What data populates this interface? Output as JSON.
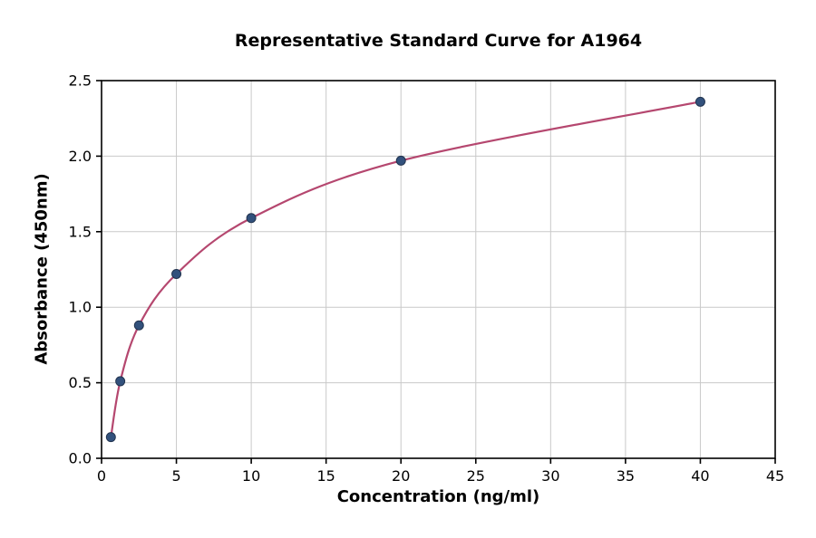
{
  "chart_data": {
    "type": "scatter",
    "title": "Representative Standard Curve for A1964",
    "xlabel": "Concentration (ng/ml)",
    "ylabel": "Absorbance (450nm)",
    "x": [
      0.625,
      1.25,
      2.5,
      5,
      10,
      20,
      40
    ],
    "y": [
      0.14,
      0.51,
      0.88,
      1.22,
      1.59,
      1.97,
      2.36
    ],
    "xlim": [
      0,
      45
    ],
    "ylim": [
      0,
      2.5
    ],
    "xticks": [
      0,
      5,
      10,
      15,
      20,
      25,
      30,
      35,
      40,
      45
    ],
    "yticks": [
      0,
      0.5,
      1.0,
      1.5,
      2.0,
      2.5
    ],
    "xtick_labels": [
      "0",
      "5",
      "10",
      "15",
      "20",
      "25",
      "30",
      "35",
      "40",
      "45"
    ],
    "ytick_labels": [
      "0.0",
      "0.5",
      "1.0",
      "1.5",
      "2.0",
      "2.5"
    ],
    "grid": true,
    "legend": "none",
    "colors": {
      "curve": "#b5476f",
      "point_fill": "#32517c",
      "point_edge": "#22344f",
      "grid": "#c9c9c9",
      "axis": "#000000",
      "background": "#ffffff"
    }
  }
}
